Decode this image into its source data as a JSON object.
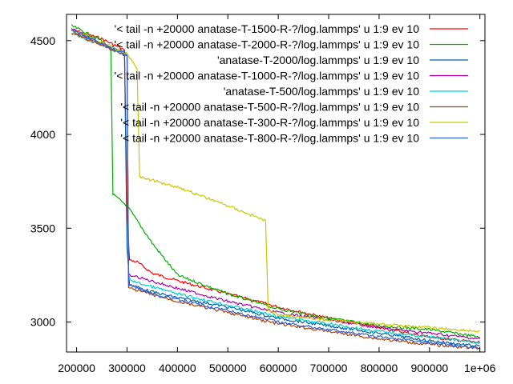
{
  "chart_data": {
    "type": "line",
    "xlim": [
      180000,
      1010000
    ],
    "ylim": [
      2840,
      4640
    ],
    "x_ticks": [
      200000,
      300000,
      400000,
      500000,
      600000,
      700000,
      800000,
      900000,
      1000000
    ],
    "x_tick_labels": [
      "200000",
      "300000",
      "400000",
      "500000",
      "600000",
      "700000",
      "800000",
      "900000",
      "1e+06"
    ],
    "y_ticks": [
      3000,
      3500,
      4000,
      4500
    ],
    "y_tick_labels": [
      "3000",
      "3500",
      "4000",
      "4500"
    ],
    "grid": false,
    "legend_position": "top-right",
    "series": [
      {
        "name": "'< tail -n +20000 anatase-T-1500-R-?/log.lammps' u 1:9 ev 10",
        "color": "#ff0000",
        "x": [
          190000,
          250000,
          295000,
          300000,
          305000,
          320000,
          350000,
          400000,
          500000,
          600000,
          700000,
          800000,
          900000,
          1000000
        ],
        "y": [
          4560,
          4510,
          4450,
          3600,
          3330,
          3320,
          3260,
          3220,
          3150,
          3080,
          3020,
          2970,
          2920,
          2890
        ]
      },
      {
        "name": "'< tail -n +20000 anatase-T-2000-R-?/log.lammps' u 1:9 ev 10",
        "color": "#00b000",
        "x": [
          190000,
          250000,
          268000,
          272000,
          300000,
          350000,
          400000,
          500000,
          600000,
          700000,
          800000,
          900000,
          1000000
        ],
        "y": [
          4580,
          4500,
          4450,
          3680,
          3620,
          3420,
          3250,
          3150,
          3070,
          3020,
          2980,
          2960,
          2920
        ]
      },
      {
        "name": "'anatase-T-2000/log.lammps' u 1:9 ev 10",
        "color": "#0060b0",
        "x": [
          190000,
          295000,
          300000,
          305000,
          350000,
          400000,
          500000,
          600000,
          700000,
          800000,
          900000,
          1000000
        ],
        "y": [
          4550,
          4440,
          3400,
          3200,
          3160,
          3130,
          3080,
          3020,
          2980,
          2940,
          2900,
          2870
        ]
      },
      {
        "name": "'< tail -n +20000 anatase-T-1000-R-?/log.lammps' u 1:9 ev 10",
        "color": "#b000b0",
        "x": [
          190000,
          300000,
          303000,
          320000,
          400000,
          500000,
          600000,
          700000,
          800000,
          900000,
          1000000
        ],
        "y": [
          4560,
          4420,
          3250,
          3240,
          3180,
          3110,
          3050,
          3010,
          2970,
          2940,
          2910
        ]
      },
      {
        "name": "'anatase-T-500/log.lammps' u 1:9 ev 10",
        "color": "#00d0d0",
        "x": [
          190000,
          300000,
          303000,
          320000,
          400000,
          500000,
          600000,
          700000,
          800000,
          900000,
          1000000
        ],
        "y": [
          4540,
          4420,
          3230,
          3210,
          3150,
          3090,
          3030,
          2990,
          2950,
          2920,
          2890
        ]
      },
      {
        "name": "'< tail -n +20000 anatase-T-500-R-?/log.lammps' u 1:9 ev 10",
        "color": "#b04000",
        "x": [
          190000,
          300000,
          303000,
          400000,
          500000,
          600000,
          700000,
          800000,
          900000,
          1000000
        ],
        "y": [
          4540,
          4420,
          3180,
          3110,
          3050,
          2990,
          2950,
          2910,
          2880,
          2860
        ]
      },
      {
        "name": "'< tail -n +20000 anatase-T-300-R-?/log.lammps' u 1:9 ev 10",
        "color": "#c8c800",
        "x": [
          190000,
          300000,
          320000,
          325000,
          330000,
          400000,
          500000,
          575000,
          580000,
          600000,
          700000,
          800000,
          900000,
          1000000
        ],
        "y": [
          4560,
          4430,
          4350,
          3780,
          3770,
          3720,
          3620,
          3540,
          3060,
          3040,
          3010,
          2990,
          2970,
          2950
        ]
      },
      {
        "name": "'< tail -n +20000 anatase-T-800-R-?/log.lammps' u 1:9 ev 10",
        "color": "#3060e0",
        "x": [
          190000,
          300000,
          303000,
          350000,
          400000,
          500000,
          600000,
          700000,
          800000,
          900000,
          1000000
        ],
        "y": [
          4560,
          4420,
          3200,
          3150,
          3120,
          3060,
          3000,
          2960,
          2920,
          2890,
          2860
        ]
      }
    ]
  }
}
